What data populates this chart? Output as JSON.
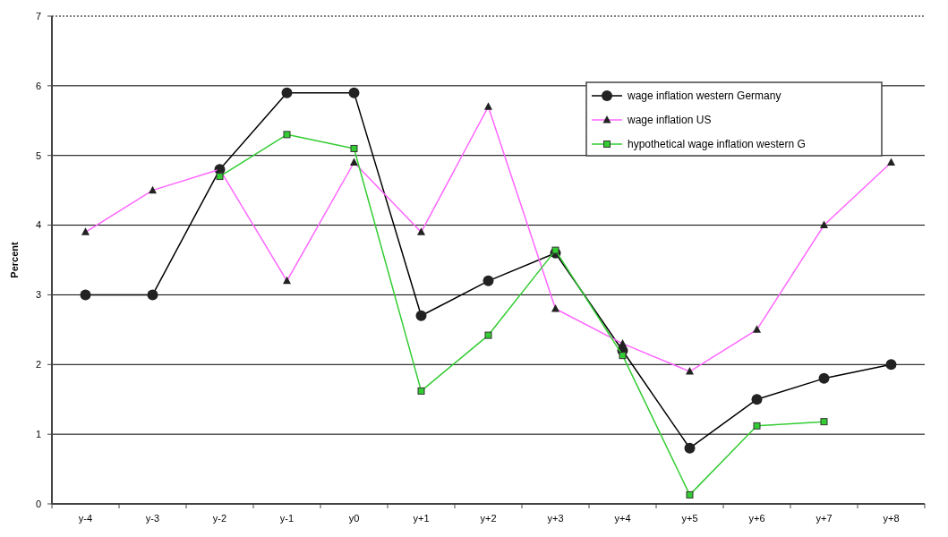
{
  "chart_data": {
    "type": "line",
    "ylabel": "Percent",
    "categories": [
      "y-4",
      "y-3",
      "y-2",
      "y-1",
      "y0",
      "y+1",
      "y+2",
      "y+3",
      "y+4",
      "y+5",
      "y+6",
      "y+7",
      "y+8"
    ],
    "series": [
      {
        "name": "wage inflation western Germany",
        "color": "#000000",
        "marker": "circle",
        "values": [
          3.0,
          3.0,
          4.8,
          5.9,
          5.9,
          2.7,
          3.2,
          3.6,
          2.2,
          0.8,
          1.5,
          1.8,
          2.0
        ]
      },
      {
        "name": "wage inflation US",
        "color": "#ff66ff",
        "marker": "triangle",
        "values": [
          3.9,
          4.5,
          4.8,
          3.2,
          4.9,
          3.9,
          5.7,
          2.8,
          2.3,
          1.9,
          2.5,
          4.0,
          4.9
        ]
      },
      {
        "name": "hypothetical wage inflation western G",
        "color": "#33cc33",
        "marker": "square",
        "values": [
          null,
          null,
          4.7,
          5.3,
          5.1,
          1.62,
          2.42,
          3.64,
          2.13,
          0.13,
          1.12,
          1.18,
          null
        ]
      }
    ],
    "ylim": [
      0,
      7
    ],
    "yticks": [
      0,
      1,
      2,
      3,
      4,
      5,
      6,
      7
    ],
    "grid": "y",
    "legend": "top right",
    "line_style": "solid"
  }
}
